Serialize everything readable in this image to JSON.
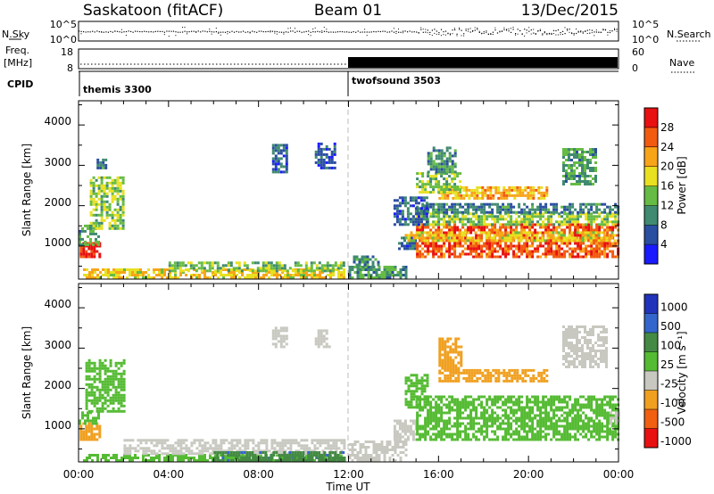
{
  "header": {
    "title": "Saskatoon (fitACF)",
    "beam": "Beam 01",
    "date": "13/Dec/2015"
  },
  "noise_panel": {
    "left_label": "N.Sky",
    "right_label": "N.Search",
    "left_ticks": [
      "10^5",
      "10^0"
    ],
    "right_ticks": [
      "10^5",
      "10^0"
    ]
  },
  "freq_panel": {
    "left_label_line1": "Freq.",
    "left_label_line2": "[MHz]",
    "right_label": "Nave",
    "left_ticks": [
      "18",
      "8"
    ],
    "right_ticks": [
      "60",
      "0"
    ]
  },
  "cpid": {
    "label": "CPID",
    "modes": [
      {
        "name": "themis 3300",
        "start_hour": 0
      },
      {
        "name": "twofsound 3503",
        "start_hour": 12
      }
    ]
  },
  "xaxis": {
    "label": "Time UT",
    "ticks": [
      "00:00",
      "04:00",
      "08:00",
      "12:00",
      "16:00",
      "20:00",
      "00:00"
    ]
  },
  "chart_data": [
    {
      "type": "heatmap",
      "name": "power",
      "ylabel": "Slant Range [km]",
      "yticks": [
        "1000",
        "2000",
        "3000",
        "4000"
      ],
      "xlim_hours": [
        0,
        24
      ],
      "ylim_km": [
        180,
        4600
      ],
      "colorbar_label": "Power [dB]",
      "colorbar_ticks": [
        "4",
        "8",
        "12",
        "16",
        "20",
        "24",
        "28"
      ],
      "colorbar_range": [
        0,
        30
      ],
      "colors": [
        "#1a1aff",
        "#2a4ea0",
        "#3f8a70",
        "#66bb44",
        "#e8e020",
        "#f8a418",
        "#f25a10",
        "#e81010"
      ],
      "regions": [
        {
          "t": [
            0.05,
            0.95
          ],
          "r": [
            700,
            1050
          ],
          "v": 28
        },
        {
          "t": [
            0.0,
            0.9
          ],
          "r": [
            1000,
            1500
          ],
          "v": 11
        },
        {
          "t": [
            0.5,
            2.0
          ],
          "r": [
            1400,
            2700
          ],
          "v": 14
        },
        {
          "t": [
            0.8,
            1.2
          ],
          "r": [
            2900,
            3100
          ],
          "v": 8
        },
        {
          "t": [
            0.2,
            11.8
          ],
          "r": [
            180,
            400
          ],
          "v": 18
        },
        {
          "t": [
            4.0,
            11.8
          ],
          "r": [
            350,
            600
          ],
          "v": 13
        },
        {
          "t": [
            12.0,
            14.5
          ],
          "r": [
            180,
            500
          ],
          "v": 10
        },
        {
          "t": [
            12.2,
            13.3
          ],
          "r": [
            500,
            700
          ],
          "v": 9
        },
        {
          "t": [
            14.2,
            15.0
          ],
          "r": [
            900,
            1200
          ],
          "v": 7
        },
        {
          "t": [
            8.6,
            9.3
          ],
          "r": [
            2800,
            3500
          ],
          "v": 7
        },
        {
          "t": [
            10.5,
            11.4
          ],
          "r": [
            2900,
            3500
          ],
          "v": 6
        },
        {
          "t": [
            15.0,
            24.0
          ],
          "r": [
            700,
            1500
          ],
          "v": 25
        },
        {
          "t": [
            15.0,
            24.0
          ],
          "r": [
            1500,
            1800
          ],
          "v": 14
        },
        {
          "t": [
            15.0,
            24.0
          ],
          "r": [
            1800,
            2000
          ],
          "v": 8
        },
        {
          "t": [
            14.5,
            23.8
          ],
          "r": [
            1100,
            1300
          ],
          "v": 18
        },
        {
          "t": [
            16.0,
            20.8
          ],
          "r": [
            2150,
            2450
          ],
          "v": 20
        },
        {
          "t": [
            15.0,
            17.0
          ],
          "r": [
            2300,
            2800
          ],
          "v": 14
        },
        {
          "t": [
            14.0,
            15.5
          ],
          "r": [
            1500,
            2200
          ],
          "v": 7
        },
        {
          "t": [
            21.5,
            23.0
          ],
          "r": [
            2500,
            3400
          ],
          "v": 11
        },
        {
          "t": [
            15.5,
            16.8
          ],
          "r": [
            2800,
            3400
          ],
          "v": 9
        }
      ]
    },
    {
      "type": "heatmap",
      "name": "velocity",
      "ylabel": "Slant Range [km]",
      "yticks": [
        "1000",
        "2000",
        "3000",
        "4000"
      ],
      "xlim_hours": [
        0,
        24
      ],
      "ylim_km": [
        180,
        4600
      ],
      "colorbar_label": "Velocity [m s⁻¹]",
      "colorbar_ticks": [
        "1000",
        "500",
        "100",
        "25",
        "-25",
        "-100",
        "-500",
        "-1000"
      ],
      "colors": [
        "#2233bb",
        "#3366cc",
        "#448a44",
        "#55bb33",
        "#c8c8c0",
        "#f0a020",
        "#f06010",
        "#e81010"
      ],
      "regions": [
        {
          "t": [
            0.05,
            0.9
          ],
          "r": [
            700,
            1100
          ],
          "v": -250
        },
        {
          "t": [
            0.0,
            0.9
          ],
          "r": [
            1100,
            1400
          ],
          "v": 0
        },
        {
          "t": [
            0.3,
            2.0
          ],
          "r": [
            1400,
            2700
          ],
          "v": 0
        },
        {
          "t": [
            0.2,
            11.8
          ],
          "r": [
            180,
            350
          ],
          "v": 0
        },
        {
          "t": [
            2.0,
            11.8
          ],
          "r": [
            350,
            700
          ],
          "v": -60
        },
        {
          "t": [
            6.0,
            11.8
          ],
          "r": [
            180,
            380
          ],
          "v": 80
        },
        {
          "t": [
            12.0,
            14.5
          ],
          "r": [
            180,
            700
          ],
          "v": -70
        },
        {
          "t": [
            14.0,
            15.0
          ],
          "r": [
            700,
            1200
          ],
          "v": -40
        },
        {
          "t": [
            8.6,
            9.2
          ],
          "r": [
            3000,
            3500
          ],
          "v": -60
        },
        {
          "t": [
            10.5,
            11.2
          ],
          "r": [
            3000,
            3400
          ],
          "v": -60
        },
        {
          "t": [
            15.0,
            24.0
          ],
          "r": [
            700,
            1800
          ],
          "v": 0
        },
        {
          "t": [
            14.5,
            15.5
          ],
          "r": [
            1500,
            2300
          ],
          "v": 0
        },
        {
          "t": [
            16.0,
            20.8
          ],
          "r": [
            2150,
            2450
          ],
          "v": -300
        },
        {
          "t": [
            16.0,
            17.0
          ],
          "r": [
            2400,
            3200
          ],
          "v": -300
        },
        {
          "t": [
            21.5,
            23.5
          ],
          "r": [
            2500,
            3500
          ],
          "v": -40
        },
        {
          "t": [
            23.6,
            24.0
          ],
          "r": [
            1100,
            1400
          ],
          "v": -60
        },
        {
          "t": [
            7.0,
            11.8
          ],
          "r": [
            180,
            300
          ],
          "v": 50
        }
      ]
    }
  ]
}
